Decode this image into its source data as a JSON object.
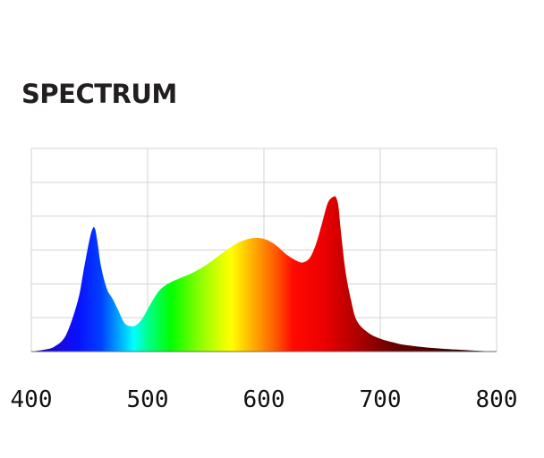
{
  "chart_data": {
    "type": "area",
    "title": "SPECTRUM",
    "xlabel": "",
    "ylabel": "",
    "xlim": [
      400,
      800
    ],
    "ylim": [
      0,
      6
    ],
    "x_ticks": [
      400,
      500,
      600,
      700,
      800
    ],
    "y_gridlines": 6,
    "grid": true,
    "legend": "none",
    "fill": "visible-spectrum-gradient",
    "series": [
      {
        "x": [
          400,
          410,
          420,
          430,
          440,
          445,
          450,
          453,
          455,
          457,
          460,
          465,
          470,
          475,
          480,
          485,
          490,
          495,
          500,
          505,
          510,
          515,
          520,
          530,
          540,
          550,
          560,
          570,
          580,
          590,
          600,
          610,
          620,
          630,
          635,
          640,
          645,
          650,
          655,
          660,
          662,
          664,
          666,
          670,
          675,
          680,
          690,
          700,
          710,
          720,
          740,
          760,
          780,
          800
        ],
        "y": [
          0.0,
          0.05,
          0.15,
          0.5,
          1.5,
          2.4,
          3.3,
          3.65,
          3.6,
          3.2,
          2.5,
          1.85,
          1.55,
          1.2,
          0.85,
          0.75,
          0.78,
          0.95,
          1.25,
          1.55,
          1.8,
          1.95,
          2.05,
          2.2,
          2.35,
          2.55,
          2.8,
          3.05,
          3.25,
          3.35,
          3.33,
          3.15,
          2.85,
          2.65,
          2.65,
          2.8,
          3.2,
          3.8,
          4.4,
          4.58,
          4.55,
          4.3,
          3.6,
          2.4,
          1.5,
          0.9,
          0.55,
          0.38,
          0.28,
          0.2,
          0.12,
          0.07,
          0.03,
          0.0
        ]
      }
    ]
  },
  "colors": {
    "gridline": "#d3d3d3",
    "title": "#231f20",
    "tick_text": "#111111",
    "spectrum_stops": [
      {
        "nm": 400,
        "color": "#2a00b0"
      },
      {
        "nm": 440,
        "color": "#0a10ff"
      },
      {
        "nm": 460,
        "color": "#0040ff"
      },
      {
        "nm": 478,
        "color": "#00b8ff"
      },
      {
        "nm": 488,
        "color": "#00ffff"
      },
      {
        "nm": 500,
        "color": "#00ff8c"
      },
      {
        "nm": 520,
        "color": "#00ff00"
      },
      {
        "nm": 545,
        "color": "#8cff00"
      },
      {
        "nm": 565,
        "color": "#e8ff00"
      },
      {
        "nm": 572,
        "color": "#ffff00"
      },
      {
        "nm": 590,
        "color": "#ffb000"
      },
      {
        "nm": 610,
        "color": "#ff5a00"
      },
      {
        "nm": 625,
        "color": "#ff0a00"
      },
      {
        "nm": 650,
        "color": "#ee0000"
      },
      {
        "nm": 680,
        "color": "#b00000"
      },
      {
        "nm": 710,
        "color": "#6a0000"
      },
      {
        "nm": 760,
        "color": "#3a0000"
      },
      {
        "nm": 800,
        "color": "#200000"
      }
    ]
  }
}
